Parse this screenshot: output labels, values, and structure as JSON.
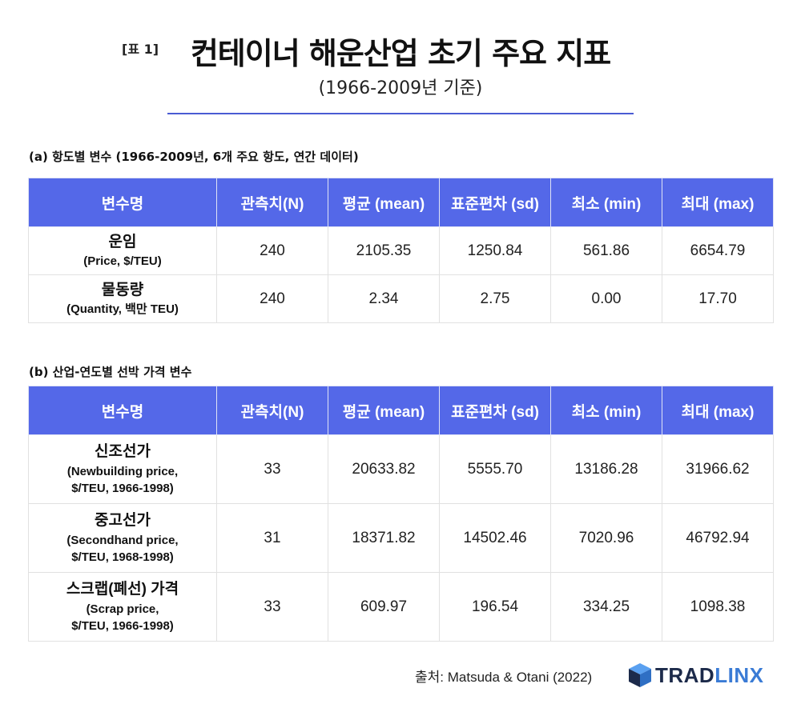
{
  "header": {
    "tag": "[표 1]",
    "title": "컨테이너 해운산업 초기 주요 지표",
    "subtitle": "(1966-2009년 기준)"
  },
  "colors": {
    "accent": "#5468e8",
    "rule": "#4a5bd3",
    "logo_dark": "#1c2a4a",
    "logo_blue": "#3a7bd5"
  },
  "columns": [
    "변수명",
    "관측치(N)",
    "평균 (mean)",
    "표준편차 (sd)",
    "최소 (min)",
    "최대 (max)"
  ],
  "section_a": {
    "label": "(a) 항도별 변수 (1966-2009년, 6개 주요 항도, 연간 데이터)",
    "rows": [
      {
        "name": "운임",
        "desc": [
          "(Price, $/TEU)"
        ],
        "n": "240",
        "mean": "2105.35",
        "sd": "1250.84",
        "min": "561.86",
        "max": "6654.79"
      },
      {
        "name": "물동량",
        "desc": [
          "(Quantity, 백만 TEU)"
        ],
        "n": "240",
        "mean": "2.34",
        "sd": "2.75",
        "min": "0.00",
        "max": "17.70"
      }
    ]
  },
  "section_b": {
    "label": "(b) 산업-연도별 선박 가격 변수",
    "rows": [
      {
        "name": "신조선가",
        "desc": [
          "(Newbuilding price,",
          "$/TEU, 1966-1998)"
        ],
        "n": "33",
        "mean": "20633.82",
        "sd": "5555.70",
        "min": "13186.28",
        "max": "31966.62"
      },
      {
        "name": "중고선가",
        "desc": [
          "(Secondhand price,",
          "$/TEU, 1968-1998)"
        ],
        "n": "31",
        "mean": "18371.82",
        "sd": "14502.46",
        "min": "7020.96",
        "max": "46792.94"
      },
      {
        "name": "스크랩(폐선) 가격",
        "desc": [
          "(Scrap price,",
          "$/TEU, 1966-1998)"
        ],
        "n": "33",
        "mean": "609.97",
        "sd": "196.54",
        "min": "334.25",
        "max": "1098.38"
      }
    ]
  },
  "footer": {
    "source": "출처: Matsuda & Otani (2022)",
    "logo_text_dark": "TRAD",
    "logo_text_accent": "LINX",
    "logo_icon": "cube-icon"
  }
}
